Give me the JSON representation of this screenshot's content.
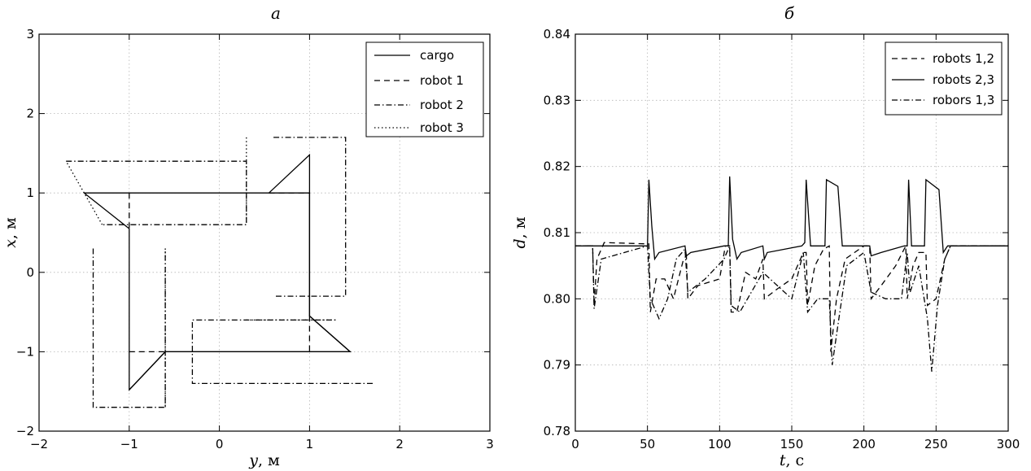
{
  "chart_data": [
    {
      "panel_label": "а",
      "type": "line",
      "xlabel_var": "y",
      "xlabel_unit": ", м",
      "ylabel_var": "x",
      "ylabel_unit": ", м",
      "xlim": [
        -2,
        3
      ],
      "ylim": [
        -2,
        3
      ],
      "xticks": [
        -2,
        -1,
        0,
        1,
        2,
        3
      ],
      "yticks": [
        -2,
        -1,
        0,
        1,
        2,
        3
      ],
      "xtick_labels": [
        "−2",
        "−1",
        "0",
        "1",
        "2",
        "3"
      ],
      "ytick_labels": [
        "−2",
        "−1",
        "0",
        "1",
        "2",
        "3"
      ],
      "grid": true,
      "legend_position": "top-right",
      "series": [
        {
          "name": "cargo",
          "style": "solid",
          "paths": [
            [
              [
                -1.5,
                1
              ],
              [
                1,
                1
              ],
              [
                1,
                -0.55
              ],
              [
                1.45,
                -1
              ],
              [
                -0.6,
                -1
              ],
              [
                -1,
                -1.48
              ],
              [
                -1,
                0.55
              ],
              [
                -1.5,
                1
              ]
            ],
            [
              [
                0.55,
                1
              ],
              [
                1,
                1.48
              ],
              [
                1,
                -0.55
              ],
              [
                1.45,
                -1
              ],
              [
                -0.6,
                -1
              ],
              [
                -1,
                -1.48
              ]
            ]
          ]
        },
        {
          "name": "robot 1",
          "style": "dashed",
          "paths": [
            [
              [
                -1,
                1
              ],
              [
                -1,
                0.55
              ]
            ],
            [
              [
                0.55,
                1
              ],
              [
                1,
                1
              ]
            ],
            [
              [
                1,
                -0.55
              ],
              [
                1,
                -1
              ]
            ],
            [
              [
                -1,
                -1
              ],
              [
                -0.6,
                -1
              ]
            ]
          ]
        },
        {
          "name": "robot 2",
          "style": "dashdot",
          "paths": [
            [
              [
                -1.7,
                1.4
              ],
              [
                0.3,
                1.4
              ],
              [
                0.3,
                0.6
              ],
              [
                -1.3,
                0.6
              ]
            ],
            [
              [
                -1.4,
                0.3
              ],
              [
                -1.4,
                -1.7
              ],
              [
                -0.6,
                -1.7
              ],
              [
                -0.6,
                0.3
              ]
            ],
            [
              [
                0.6,
                1.7
              ],
              [
                1.4,
                1.7
              ],
              [
                1.4,
                -0.3
              ],
              [
                0.6,
                -0.3
              ]
            ],
            [
              [
                1.7,
                -1.4
              ],
              [
                -0.3,
                -1.4
              ],
              [
                -0.3,
                -0.6
              ],
              [
                1.3,
                -0.6
              ]
            ]
          ]
        },
        {
          "name": "robot 3",
          "style": "dotted",
          "paths": [
            [
              [
                -0.6,
                0.3
              ],
              [
                -0.6,
                -1.7
              ]
            ],
            [
              [
                0.3,
                -0.6
              ],
              [
                1.3,
                -0.6
              ]
            ],
            [
              [
                0.3,
                1.7
              ],
              [
                0.3,
                0.6
              ]
            ],
            [
              [
                -1.3,
                0.6
              ],
              [
                -1.7,
                1.4
              ]
            ]
          ]
        }
      ]
    },
    {
      "panel_label": "б",
      "type": "line",
      "xlabel_var": "t",
      "xlabel_unit": ", с",
      "ylabel_var": "d",
      "ylabel_unit": ", м",
      "xlim": [
        0,
        300
      ],
      "ylim": [
        0.78,
        0.84
      ],
      "xticks": [
        0,
        50,
        100,
        150,
        200,
        250,
        300
      ],
      "yticks": [
        0.78,
        0.79,
        0.8,
        0.81,
        0.82,
        0.83,
        0.84
      ],
      "xtick_labels": [
        "0",
        "50",
        "100",
        "150",
        "200",
        "250",
        "300"
      ],
      "ytick_labels": [
        "0.78",
        "0.79",
        "0.80",
        "0.81",
        "0.82",
        "0.83",
        "0.84"
      ],
      "grid": true,
      "legend_position": "top-right",
      "series": [
        {
          "name": "robots 1,2",
          "style": "dashed",
          "points": [
            [
              0,
              0.808
            ],
            [
              12,
              0.808
            ],
            [
              13,
              0.799
            ],
            [
              15,
              0.806
            ],
            [
              20,
              0.8085
            ],
            [
              50,
              0.8083
            ],
            [
              51,
              0.8083
            ],
            [
              52,
              0.798
            ],
            [
              56,
              0.803
            ],
            [
              62,
              0.803
            ],
            [
              68,
              0.8
            ],
            [
              75,
              0.806
            ],
            [
              77,
              0.8065
            ],
            [
              78,
              0.8
            ],
            [
              85,
              0.802
            ],
            [
              100,
              0.803
            ],
            [
              104,
              0.808
            ],
            [
              107,
              0.808
            ],
            [
              108,
              0.798
            ],
            [
              112,
              0.798
            ],
            [
              118,
              0.804
            ],
            [
              125,
              0.803
            ],
            [
              130,
              0.806
            ],
            [
              131,
              0.8
            ],
            [
              140,
              0.8015
            ],
            [
              150,
              0.803
            ],
            [
              158,
              0.807
            ],
            [
              160,
              0.807
            ],
            [
              161,
              0.799
            ],
            [
              166,
              0.805
            ],
            [
              172,
              0.8075
            ],
            [
              176,
              0.808
            ],
            [
              177,
              0.792
            ],
            [
              181,
              0.8
            ],
            [
              187,
              0.806
            ],
            [
              200,
              0.808
            ],
            [
              204,
              0.808
            ],
            [
              205,
              0.8
            ],
            [
              212,
              0.802
            ],
            [
              222,
              0.805
            ],
            [
              229,
              0.808
            ],
            [
              230,
              0.8
            ],
            [
              234,
              0.805
            ],
            [
              238,
              0.807
            ],
            [
              243,
              0.807
            ],
            [
              244,
              0.799
            ],
            [
              250,
              0.8
            ],
            [
              256,
              0.806
            ],
            [
              260,
              0.808
            ],
            [
              300,
              0.808
            ]
          ]
        },
        {
          "name": "robots 2,3",
          "style": "solid",
          "points": [
            [
              0,
              0.808
            ],
            [
              50,
              0.808
            ],
            [
              51,
              0.818
            ],
            [
              53,
              0.811
            ],
            [
              55,
              0.806
            ],
            [
              58,
              0.807
            ],
            [
              76,
              0.808
            ],
            [
              77,
              0.8065
            ],
            [
              80,
              0.807
            ],
            [
              103,
              0.808
            ],
            [
              106,
              0.808
            ],
            [
              107,
              0.8185
            ],
            [
              109,
              0.809
            ],
            [
              112,
              0.806
            ],
            [
              115,
              0.807
            ],
            [
              130,
              0.808
            ],
            [
              131,
              0.806
            ],
            [
              133,
              0.807
            ],
            [
              157,
              0.808
            ],
            [
              159,
              0.8085
            ],
            [
              160,
              0.818
            ],
            [
              163,
              0.808
            ],
            [
              173,
              0.808
            ],
            [
              174,
              0.818
            ],
            [
              182,
              0.817
            ],
            [
              185,
              0.808
            ],
            [
              190,
              0.808
            ],
            [
              204,
              0.808
            ],
            [
              205,
              0.8065
            ],
            [
              212,
              0.807
            ],
            [
              228,
              0.808
            ],
            [
              230,
              0.808
            ],
            [
              231,
              0.818
            ],
            [
              233,
              0.808
            ],
            [
              242,
              0.808
            ],
            [
              243,
              0.818
            ],
            [
              252,
              0.8165
            ],
            [
              255,
              0.807
            ],
            [
              258,
              0.808
            ],
            [
              300,
              0.808
            ]
          ]
        },
        {
          "name": "robors 1,3",
          "style": "dashdot",
          "points": [
            [
              0,
              0.808
            ],
            [
              12,
              0.808
            ],
            [
              13,
              0.7985
            ],
            [
              18,
              0.806
            ],
            [
              50,
              0.808
            ],
            [
              52,
              0.8
            ],
            [
              58,
              0.797
            ],
            [
              64,
              0.8
            ],
            [
              70,
              0.806
            ],
            [
              76,
              0.8075
            ],
            [
              78,
              0.801
            ],
            [
              90,
              0.803
            ],
            [
              103,
              0.806
            ],
            [
              107,
              0.808
            ],
            [
              108,
              0.799
            ],
            [
              114,
              0.798
            ],
            [
              122,
              0.801
            ],
            [
              130,
              0.804
            ],
            [
              140,
              0.802
            ],
            [
              150,
              0.8
            ],
            [
              158,
              0.807
            ],
            [
              161,
              0.798
            ],
            [
              168,
              0.8
            ],
            [
              176,
              0.8
            ],
            [
              178,
              0.79
            ],
            [
              182,
              0.796
            ],
            [
              188,
              0.805
            ],
            [
              200,
              0.807
            ],
            [
              205,
              0.801
            ],
            [
              215,
              0.8
            ],
            [
              226,
              0.8
            ],
            [
              230,
              0.807
            ],
            [
              232,
              0.801
            ],
            [
              238,
              0.805
            ],
            [
              244,
              0.797
            ],
            [
              247,
              0.789
            ],
            [
              251,
              0.799
            ],
            [
              256,
              0.806
            ],
            [
              260,
              0.808
            ],
            [
              300,
              0.808
            ]
          ]
        }
      ]
    }
  ]
}
